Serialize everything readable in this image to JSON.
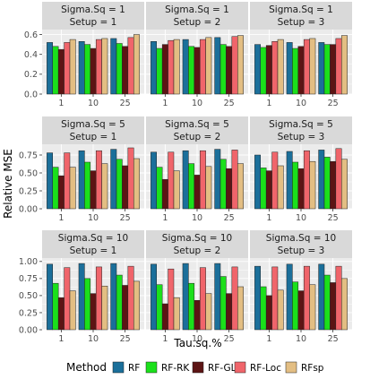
{
  "chart_data": {
    "type": "bar",
    "layout": "facet-grid",
    "xlabel": "Tau.sq.%",
    "ylabel": "Relative MSE",
    "categories": [
      "1",
      "10",
      "25"
    ],
    "legend": {
      "title": "Method",
      "position": "bottom",
      "entries": [
        "RF",
        "RF-RK",
        "RF-GLS",
        "RF-Loc",
        "RFsp"
      ]
    },
    "colors": {
      "RF": "#1b6f9a",
      "RF-RK": "#1be01b",
      "RF-GLS": "#5c1414",
      "RF-Loc": "#f0656b",
      "RFsp": "#e3be83"
    },
    "grid": true,
    "rows": [
      {
        "ylim": [
          0,
          0.65
        ],
        "yticks": [
          0,
          0.2,
          0.4,
          0.6
        ],
        "ytick_labels": [
          "0.0",
          "0.2",
          "0.4",
          "0.6"
        ]
      },
      {
        "ylim": [
          0,
          0.9
        ],
        "yticks": [
          0,
          0.25,
          0.5,
          0.75
        ],
        "ytick_labels": [
          "0.00",
          "0.25",
          "0.50",
          "0.75"
        ]
      },
      {
        "ylim": [
          0,
          1.05
        ],
        "yticks": [
          0,
          0.25,
          0.5,
          0.75,
          1.0
        ],
        "ytick_labels": [
          "0.00",
          "0.25",
          "0.50",
          "0.75",
          "1.00"
        ]
      }
    ],
    "panels": [
      {
        "strip": [
          "Sigma.Sq = 1",
          "Setup = 1"
        ],
        "row": 0,
        "col": 0,
        "series": [
          {
            "name": "RF",
            "values": [
              0.52,
              0.53,
              0.56
            ]
          },
          {
            "name": "RF-RK",
            "values": [
              0.48,
              0.5,
              0.51
            ]
          },
          {
            "name": "RF-GLS",
            "values": [
              0.45,
              0.46,
              0.48
            ]
          },
          {
            "name": "RF-Loc",
            "values": [
              0.52,
              0.55,
              0.57
            ]
          },
          {
            "name": "RFsp",
            "values": [
              0.55,
              0.56,
              0.6
            ]
          }
        ]
      },
      {
        "strip": [
          "Sigma.Sq = 1",
          "Setup = 2"
        ],
        "row": 0,
        "col": 1,
        "series": [
          {
            "name": "RF",
            "values": [
              0.53,
              0.55,
              0.57
            ]
          },
          {
            "name": "RF-RK",
            "values": [
              0.46,
              0.48,
              0.5
            ]
          },
          {
            "name": "RF-GLS",
            "values": [
              0.5,
              0.47,
              0.48
            ]
          },
          {
            "name": "RF-Loc",
            "values": [
              0.54,
              0.55,
              0.58
            ]
          },
          {
            "name": "RFsp",
            "values": [
              0.55,
              0.57,
              0.59
            ]
          }
        ]
      },
      {
        "strip": [
          "Sigma.Sq = 1",
          "Setup = 3"
        ],
        "row": 0,
        "col": 2,
        "series": [
          {
            "name": "RF",
            "values": [
              0.5,
              0.52,
              0.52
            ]
          },
          {
            "name": "RF-RK",
            "values": [
              0.47,
              0.46,
              0.5
            ]
          },
          {
            "name": "RF-GLS",
            "values": [
              0.49,
              0.48,
              0.5
            ]
          },
          {
            "name": "RF-Loc",
            "values": [
              0.53,
              0.55,
              0.56
            ]
          },
          {
            "name": "RFsp",
            "values": [
              0.55,
              0.56,
              0.59
            ]
          }
        ]
      },
      {
        "strip": [
          "Sigma.Sq = 5",
          "Setup = 1"
        ],
        "row": 1,
        "col": 0,
        "series": [
          {
            "name": "RF",
            "values": [
              0.78,
              0.81,
              0.83
            ]
          },
          {
            "name": "RF-RK",
            "values": [
              0.58,
              0.65,
              0.69
            ]
          },
          {
            "name": "RF-GLS",
            "values": [
              0.46,
              0.53,
              0.6
            ]
          },
          {
            "name": "RF-Loc",
            "values": [
              0.78,
              0.81,
              0.85
            ]
          },
          {
            "name": "RFsp",
            "values": [
              0.58,
              0.63,
              0.7
            ]
          }
        ]
      },
      {
        "strip": [
          "Sigma.Sq = 5",
          "Setup = 2"
        ],
        "row": 1,
        "col": 1,
        "series": [
          {
            "name": "RF",
            "values": [
              0.79,
              0.81,
              0.83
            ]
          },
          {
            "name": "RF-RK",
            "values": [
              0.58,
              0.63,
              0.69
            ]
          },
          {
            "name": "RF-GLS",
            "values": [
              0.41,
              0.47,
              0.56
            ]
          },
          {
            "name": "RF-Loc",
            "values": [
              0.79,
              0.81,
              0.82
            ]
          },
          {
            "name": "RFsp",
            "values": [
              0.53,
              0.59,
              0.63
            ]
          }
        ]
      },
      {
        "strip": [
          "Sigma.Sq = 5",
          "Setup = 3"
        ],
        "row": 1,
        "col": 2,
        "series": [
          {
            "name": "RF",
            "values": [
              0.75,
              0.8,
              0.82
            ]
          },
          {
            "name": "RF-RK",
            "values": [
              0.57,
              0.65,
              0.72
            ]
          },
          {
            "name": "RF-GLS",
            "values": [
              0.53,
              0.56,
              0.66
            ]
          },
          {
            "name": "RF-Loc",
            "values": [
              0.79,
              0.81,
              0.84
            ]
          },
          {
            "name": "RFsp",
            "values": [
              0.6,
              0.66,
              0.69
            ]
          }
        ]
      },
      {
        "strip": [
          "Sigma.Sq = 10",
          "Setup = 1"
        ],
        "row": 2,
        "col": 0,
        "series": [
          {
            "name": "RF",
            "values": [
              0.96,
              0.97,
              0.97
            ]
          },
          {
            "name": "RF-RK",
            "values": [
              0.68,
              0.75,
              0.8
            ]
          },
          {
            "name": "RF-GLS",
            "values": [
              0.47,
              0.53,
              0.65
            ]
          },
          {
            "name": "RF-Loc",
            "values": [
              0.91,
              0.92,
              0.93
            ]
          },
          {
            "name": "RFsp",
            "values": [
              0.57,
              0.64,
              0.71
            ]
          }
        ]
      },
      {
        "strip": [
          "Sigma.Sq = 10",
          "Setup = 2"
        ],
        "row": 2,
        "col": 1,
        "series": [
          {
            "name": "RF",
            "values": [
              0.96,
              0.97,
              0.97
            ]
          },
          {
            "name": "RF-RK",
            "values": [
              0.66,
              0.68,
              0.78
            ]
          },
          {
            "name": "RF-GLS",
            "values": [
              0.38,
              0.43,
              0.53
            ]
          },
          {
            "name": "RF-Loc",
            "values": [
              0.89,
              0.91,
              0.92
            ]
          },
          {
            "name": "RFsp",
            "values": [
              0.47,
              0.53,
              0.63
            ]
          }
        ]
      },
      {
        "strip": [
          "Sigma.Sq = 10",
          "Setup = 3"
        ],
        "row": 2,
        "col": 2,
        "series": [
          {
            "name": "RF",
            "values": [
              0.93,
              0.96,
              0.96
            ]
          },
          {
            "name": "RF-RK",
            "values": [
              0.63,
              0.7,
              0.8
            ]
          },
          {
            "name": "RF-GLS",
            "values": [
              0.5,
              0.57,
              0.69
            ]
          },
          {
            "name": "RF-Loc",
            "values": [
              0.92,
              0.93,
              0.93
            ]
          },
          {
            "name": "RFsp",
            "values": [
              0.58,
              0.66,
              0.75
            ]
          }
        ]
      }
    ]
  }
}
